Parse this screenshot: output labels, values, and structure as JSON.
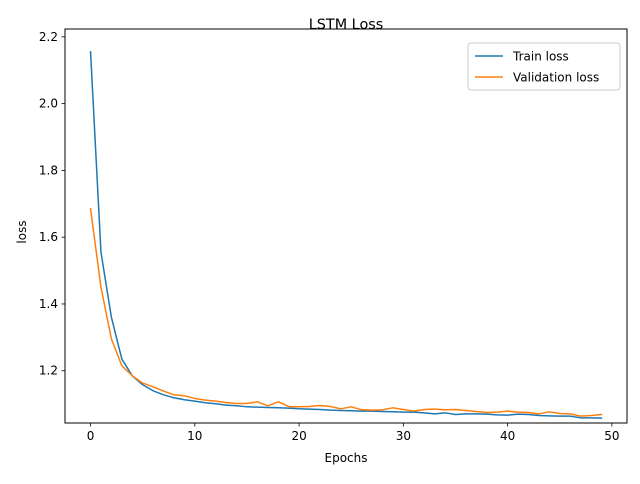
{
  "chart_data": {
    "type": "line",
    "title": "LSTM Loss",
    "xlabel": "Epochs",
    "ylabel": "loss",
    "xlim": [
      -2.45,
      51.45
    ],
    "ylim": [
      1.0435,
      2.2235
    ],
    "xticks": [
      0,
      10,
      20,
      30,
      40,
      50
    ],
    "yticks": [
      1.2,
      1.4,
      1.6,
      1.8,
      2.0,
      2.2
    ],
    "xtick_labels": [
      "0",
      "10",
      "20",
      "30",
      "40",
      "50"
    ],
    "ytick_labels": [
      "1.2",
      "1.4",
      "1.6",
      "1.8",
      "2.0",
      "2.2"
    ],
    "grid": false,
    "legend_position": "top-right",
    "x": [
      0,
      1,
      2,
      3,
      4,
      5,
      6,
      7,
      8,
      9,
      10,
      11,
      12,
      13,
      14,
      15,
      16,
      17,
      18,
      19,
      20,
      21,
      22,
      23,
      24,
      25,
      26,
      27,
      28,
      29,
      30,
      31,
      32,
      33,
      34,
      35,
      36,
      37,
      38,
      39,
      40,
      41,
      42,
      43,
      44,
      45,
      46,
      47,
      48,
      49
    ],
    "series": [
      {
        "name": "Train loss",
        "color": "#1f77b4",
        "values": [
          2.155,
          1.555,
          1.36,
          1.235,
          1.185,
          1.158,
          1.14,
          1.128,
          1.119,
          1.113,
          1.109,
          1.104,
          1.101,
          1.097,
          1.095,
          1.092,
          1.091,
          1.09,
          1.089,
          1.088,
          1.086,
          1.085,
          1.084,
          1.082,
          1.081,
          1.08,
          1.079,
          1.079,
          1.078,
          1.077,
          1.076,
          1.076,
          1.074,
          1.071,
          1.074,
          1.069,
          1.071,
          1.071,
          1.07,
          1.068,
          1.067,
          1.07,
          1.069,
          1.066,
          1.065,
          1.064,
          1.064,
          1.059,
          1.059,
          1.058
        ]
      },
      {
        "name": "Validation loss",
        "color": "#ff7f0e",
        "values": [
          1.685,
          1.45,
          1.295,
          1.215,
          1.185,
          1.163,
          1.152,
          1.139,
          1.128,
          1.125,
          1.117,
          1.112,
          1.109,
          1.105,
          1.102,
          1.102,
          1.107,
          1.095,
          1.107,
          1.093,
          1.092,
          1.093,
          1.096,
          1.093,
          1.086,
          1.092,
          1.083,
          1.082,
          1.083,
          1.089,
          1.084,
          1.079,
          1.084,
          1.085,
          1.083,
          1.084,
          1.081,
          1.078,
          1.075,
          1.076,
          1.079,
          1.076,
          1.075,
          1.071,
          1.077,
          1.072,
          1.071,
          1.064,
          1.066,
          1.069
        ]
      }
    ]
  }
}
